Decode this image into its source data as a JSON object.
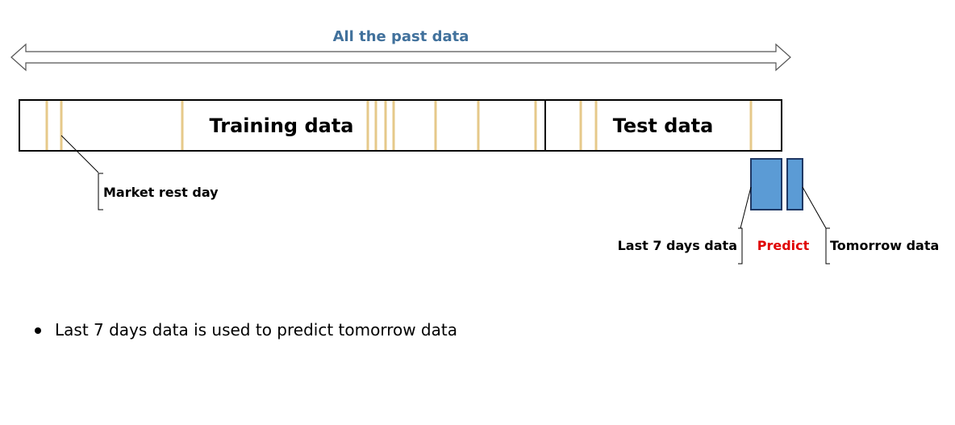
{
  "diagram": {
    "title": "All the past data",
    "training_label": "Training data",
    "test_label": "Test data",
    "market_rest_label": "Market rest day",
    "last7_label": "Last 7 days data",
    "predict_label": "Predict",
    "tomorrow_label": "Tomorrow data",
    "bullet_text": "Last 7 days data is used to predict tomorrow data"
  },
  "colors": {
    "title": "#41719C",
    "predict": "#E00000",
    "rest_day_line": "#E6C98A",
    "data_block_fill": "#5B9BD5",
    "outline": "#000000"
  }
}
